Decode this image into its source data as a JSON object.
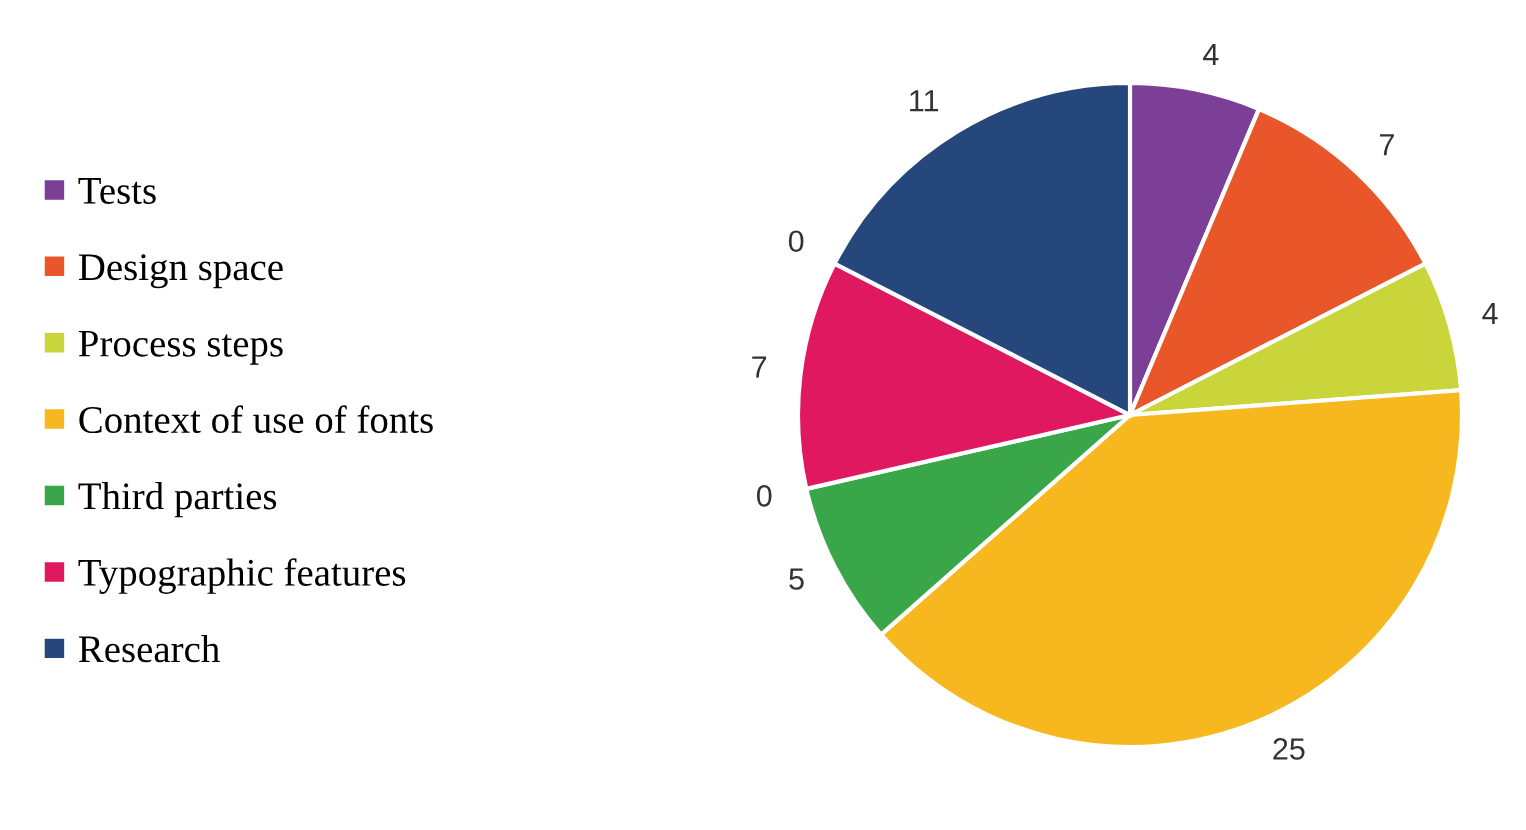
{
  "chart_data": {
    "type": "pie",
    "categories": [
      "Tests",
      "Design space",
      "Process steps",
      "Context of use of fonts",
      "Third parties",
      "Typographic features",
      "Research"
    ],
    "values": [
      4,
      7,
      4,
      25,
      5,
      7,
      11
    ],
    "colors": [
      "#7b3f98",
      "#e8562a",
      "#c9d53a",
      "#f6b81e",
      "#3aa64a",
      "#e0185f",
      "#26477b"
    ],
    "data_labels": true,
    "annotations": [
      "0",
      "0"
    ],
    "legend": "left"
  }
}
